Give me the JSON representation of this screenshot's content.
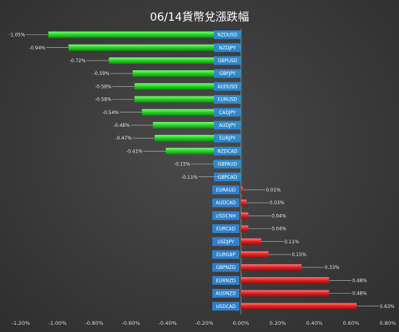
{
  "chart_data": {
    "type": "bar",
    "orientation": "horizontal",
    "title": "06/14貨幣兌漲跌幅",
    "categories": [
      "NZDUSD",
      "NZDJPY",
      "GBPUSD",
      "GBPJPY",
      "AUDUSD",
      "EURUSD",
      "CADJPY",
      "AUDJPY",
      "EURJPY",
      "NZDCAD",
      "GBPAUD",
      "GBPCAD",
      "EURAUD",
      "AUDCAD",
      "USDCNH",
      "EURCAD",
      "USDJPY",
      "EURGBP",
      "GBPNZD",
      "EURNZD",
      "AUDNZD",
      "USDCAD"
    ],
    "values": [
      -1.05,
      -0.94,
      -0.72,
      -0.59,
      -0.58,
      -0.58,
      -0.54,
      -0.48,
      -0.47,
      -0.41,
      -0.15,
      -0.11,
      0.01,
      0.03,
      0.04,
      0.04,
      0.11,
      0.15,
      0.33,
      0.48,
      0.48,
      0.63
    ],
    "value_labels": [
      "-1.05%",
      "-0.94%",
      "-0.72%",
      "-0.59%",
      "-0.58%",
      "-0.58%",
      "-0.54%",
      "-0.48%",
      "-0.47%",
      "-0.41%",
      "-0.15%",
      "-0.11%",
      "0.01%",
      "0.03%",
      "0.04%",
      "0.04%",
      "0.11%",
      "0.15%",
      "0.33%",
      "0.48%",
      "0.48%",
      "0.63%"
    ],
    "xlim": [
      -1.2,
      0.8
    ],
    "x_ticks": [
      "-1.20%",
      "-1.00%",
      "-0.80%",
      "-0.60%",
      "-0.40%",
      "-0.20%",
      "0.00%",
      "0.20%",
      "0.40%",
      "0.60%",
      "0.80%"
    ],
    "negative_color": "#2ecc40",
    "positive_color": "#e02020",
    "label_box_color": "#2f86d6",
    "grid": false,
    "legend": "none"
  }
}
